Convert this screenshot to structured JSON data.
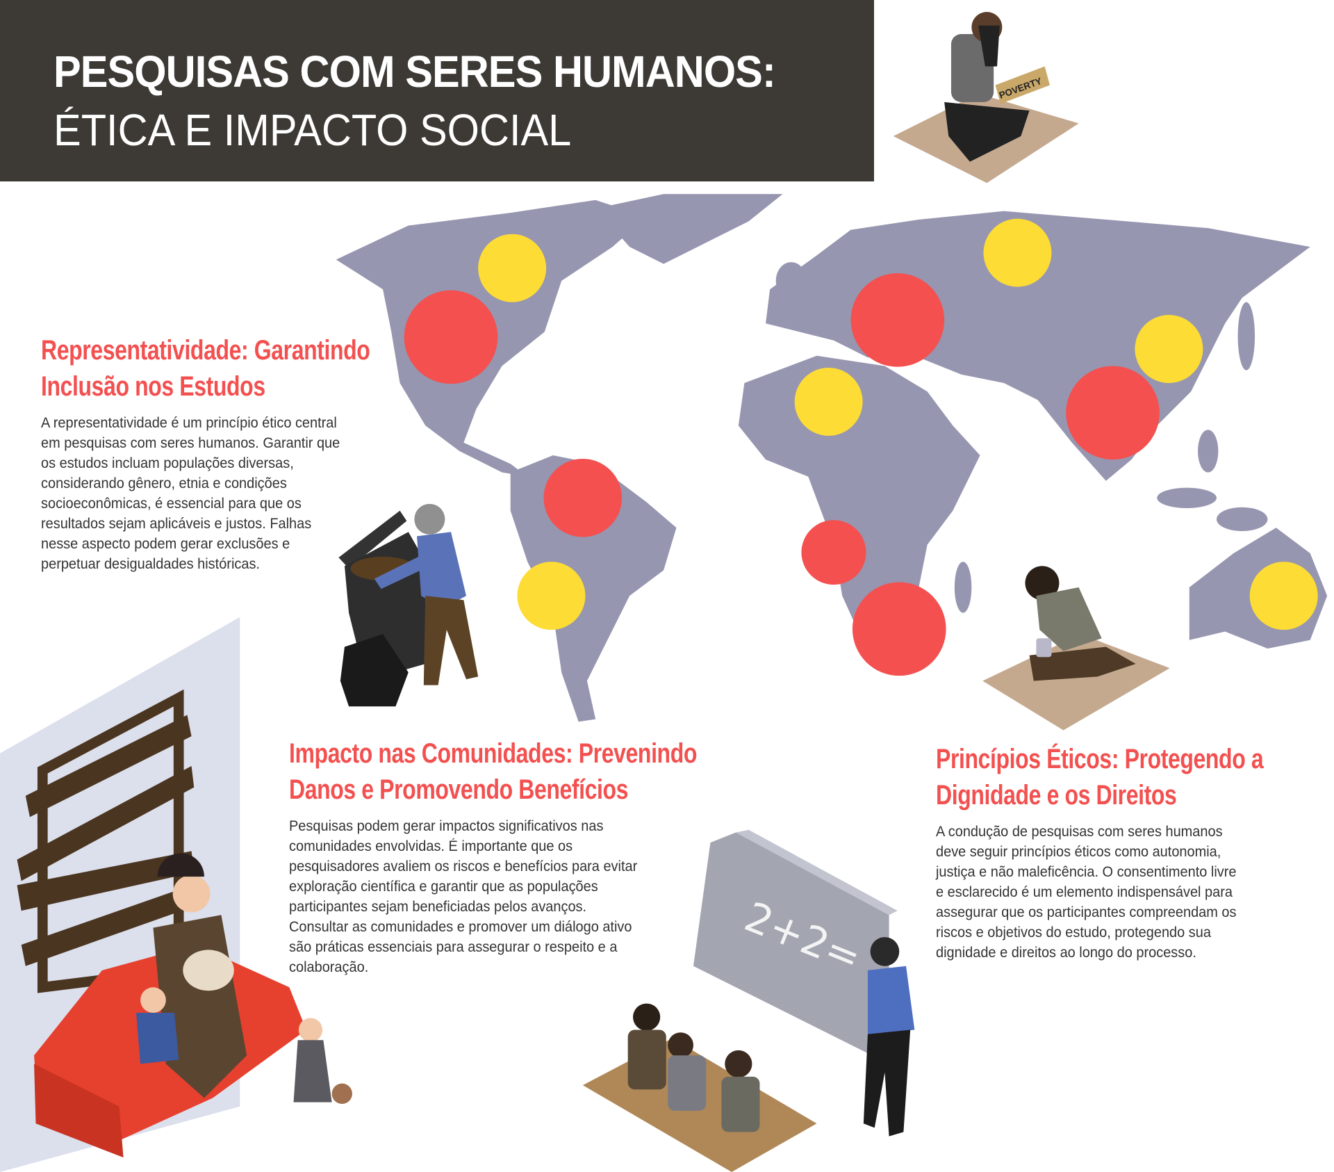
{
  "header": {
    "title_line1": "PESQUISAS COM SERES HUMANOS:",
    "title_line2": "ÉTICA E IMPACTO SOCIAL"
  },
  "sign_text": "POVERTY",
  "chalkboard_text": "2+2=",
  "colors": {
    "header_bg": "#3d3a35",
    "accent_red": "#f35050",
    "map_gray": "#9696b0",
    "marker_red": "#f45050",
    "marker_yellow": "#fddc35"
  },
  "sections": [
    {
      "heading": [
        "Representatividade: Garantindo",
        "Inclusão nos Estudos"
      ],
      "body": [
        "A representatividade é um princípio ético central",
        "em pesquisas com seres humanos. Garantir que",
        "os estudos incluam populações diversas,",
        "considerando gênero, etnia e condições",
        "socioeconômicas, é essencial para que os",
        "resultados sejam aplicáveis e justos. Falhas",
        "nesse aspecto podem gerar exclusões e",
        "perpetuar desigualdades históricas."
      ]
    },
    {
      "heading": [
        "Impacto nas Comunidades: Prevenindo",
        "Danos e Promovendo Benefícios"
      ],
      "body": [
        "Pesquisas podem gerar impactos significativos nas",
        "comunidades envolvidas. É importante que os",
        "pesquisadores avaliem os riscos e benefícios para evitar",
        "exploração científica e garantir que as populações",
        "participantes sejam beneficiadas pelos avanços.",
        "Consultar as comunidades e promover um diálogo ativo",
        "são práticas essenciais para assegurar o respeito e a",
        "colaboração."
      ]
    },
    {
      "heading": [
        "Princípios Éticos: Protegendo a",
        "Dignidade e os Direitos"
      ],
      "body": [
        "A condução de pesquisas com seres humanos",
        "deve seguir princípios éticos como autonomia,",
        "justiça e não maleficência. O consentimento livre",
        "e esclarecido é um elemento indispensável para",
        "assegurar que os participantes compreendam os",
        "riscos e objetivos do estudo, protegendo sua",
        "dignidade e direitos ao longo do processo."
      ]
    }
  ]
}
